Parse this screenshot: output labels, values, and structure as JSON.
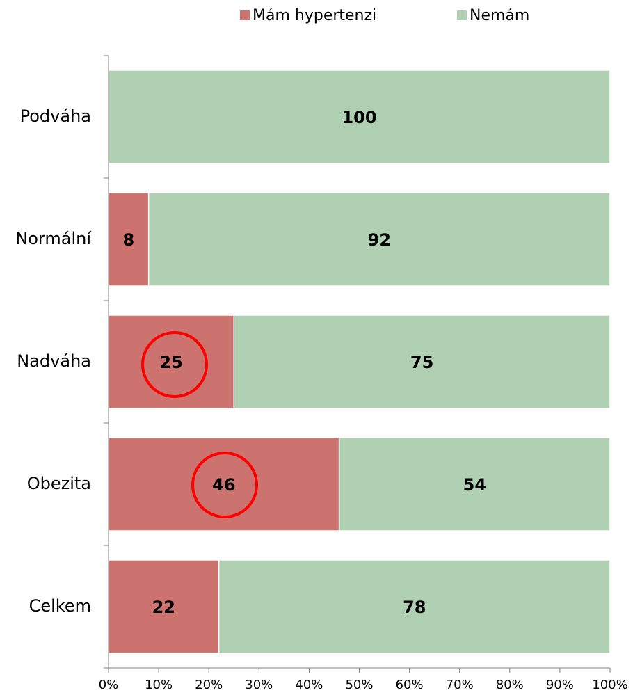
{
  "chart_data": {
    "type": "stacked_barh",
    "categories": [
      "Podváha",
      "Normální",
      "Nadváha",
      "Obezita",
      "Celkem"
    ],
    "series": [
      {
        "name": "Mám hypertenzi",
        "color": "#cd736f",
        "values": [
          0,
          8,
          25,
          46,
          22
        ]
      },
      {
        "name": "Nemám",
        "color": "#afd0b2",
        "values": [
          100,
          92,
          75,
          54,
          78
        ]
      }
    ],
    "xlim": [
      0,
      100
    ],
    "xticks": [
      {
        "value": 0,
        "label": "0%"
      },
      {
        "value": 10,
        "label": "10%"
      },
      {
        "value": 20,
        "label": "20%"
      },
      {
        "value": 30,
        "label": "30%"
      },
      {
        "value": 40,
        "label": "40%"
      },
      {
        "value": 50,
        "label": "50%"
      },
      {
        "value": 60,
        "label": "60%"
      },
      {
        "value": 70,
        "label": "70%"
      },
      {
        "value": 80,
        "label": "80%"
      },
      {
        "value": 90,
        "label": "90%"
      },
      {
        "value": 100,
        "label": "100%"
      }
    ],
    "legend": "top"
  }
}
